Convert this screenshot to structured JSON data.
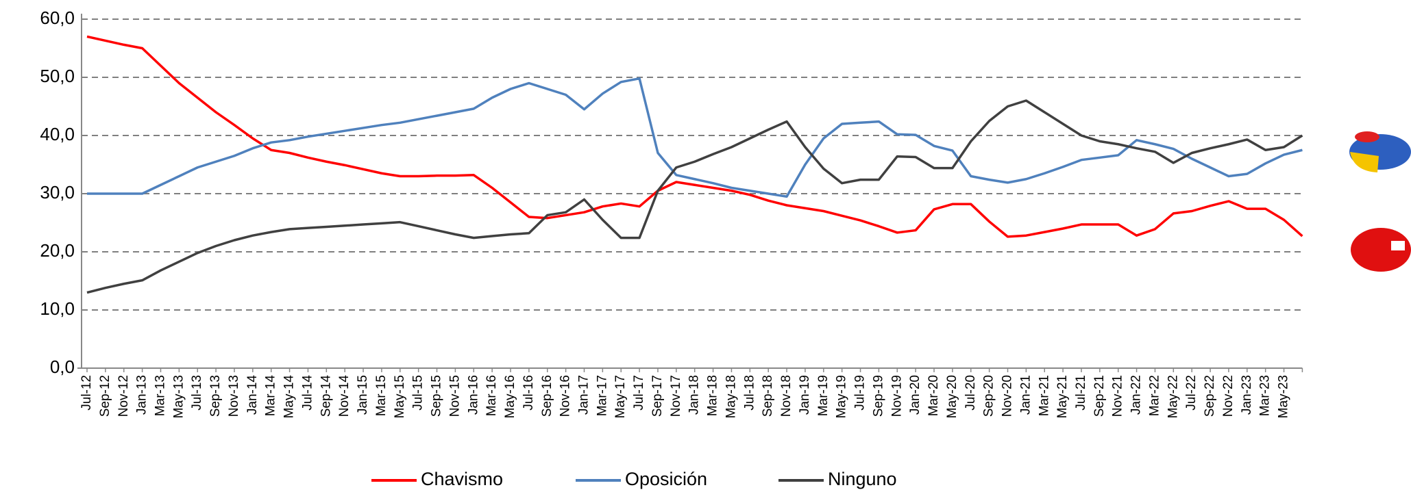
{
  "chart_data": {
    "type": "line",
    "categories": [
      "Jul-12",
      "Sep-12",
      "Nov-12",
      "Jan-13",
      "Mar-13",
      "May-13",
      "Jul-13",
      "Sep-13",
      "Nov-13",
      "Jan-14",
      "Mar-14",
      "May-14",
      "Jul-14",
      "Sep-14",
      "Nov-14",
      "Jan-15",
      "Mar-15",
      "May-15",
      "Jul-15",
      "Sep-15",
      "Nov-15",
      "Jan-16",
      "Mar-16",
      "May-16",
      "Jul-16",
      "Sep-16",
      "Nov-16",
      "Jan-17",
      "Mar-17",
      "May-17",
      "Jul-17",
      "Sep-17",
      "Nov-17",
      "Jan-18",
      "Mar-18",
      "May-18",
      "Jul-18",
      "Sep-18",
      "Nov-18",
      "Jan-19",
      "Mar-19",
      "May-19",
      "Jul-19",
      "Sep-19",
      "Nov-19",
      "Jan-20",
      "Mar-20",
      "May-20",
      "Jul-20",
      "Sep-20",
      "Nov-20",
      "Jan-21",
      "Mar-21",
      "May-21",
      "Jul-21",
      "Sep-21",
      "Nov-21",
      "Jan-22",
      "Mar-22",
      "May-22",
      "Jul-22",
      "Sep-22",
      "Nov-22",
      "Jan-23",
      "Mar-23",
      "May-23",
      null
    ],
    "series": [
      {
        "name": "Chavismo",
        "color": "#ff0000",
        "values": [
          57,
          56.3,
          55.6,
          55,
          52,
          49,
          46.5,
          44,
          41.8,
          39.5,
          37.5,
          37,
          36.2,
          35.5,
          34.9,
          34.2,
          33.5,
          33,
          33,
          33.1,
          33.1,
          33.2,
          31,
          28.5,
          26,
          25.8,
          26.3,
          26.8,
          27.8,
          28.3,
          27.8,
          30.5,
          32,
          31.5,
          31,
          30.5,
          29.8,
          28.8,
          28,
          27.5,
          27,
          26.2,
          25.4,
          24.4,
          23.3,
          23.7,
          27.3,
          28.2,
          28.2,
          25.2,
          22.6,
          22.8,
          23.4,
          24,
          24.7,
          24.7,
          24.7,
          22.8,
          23.9,
          26.6,
          27,
          27.9,
          28.7,
          27.4,
          27.4,
          25.5,
          22.7
        ]
      },
      {
        "name": "Oposición",
        "color": "#4f81bd",
        "values": [
          30,
          30,
          30,
          30,
          31.5,
          33,
          34.5,
          35.5,
          36.5,
          37.8,
          38.8,
          39.2,
          39.8,
          40.3,
          40.8,
          41.3,
          41.8,
          42.2,
          42.8,
          43.4,
          44,
          44.6,
          46.5,
          48,
          49,
          48,
          47,
          44.5,
          47.2,
          49.2,
          49.8,
          37,
          33.2,
          32.5,
          31.8,
          31,
          30.5,
          30,
          29.5,
          35,
          39.5,
          42,
          42.2,
          42.4,
          40.2,
          40.1,
          38.2,
          37.4,
          33,
          32.4,
          31.9,
          32.5,
          33.5,
          34.6,
          35.8,
          36.2,
          36.6,
          39.2,
          38.5,
          37.7,
          36,
          34.5,
          33,
          33.4,
          35.2,
          36.7,
          37.5
        ]
      },
      {
        "name": "Ninguno",
        "color": "#404040",
        "values": [
          13,
          13.8,
          14.5,
          15.1,
          16.8,
          18.3,
          19.8,
          21,
          22,
          22.8,
          23.4,
          23.9,
          24.1,
          24.3,
          24.5,
          24.7,
          24.9,
          25.1,
          24.4,
          23.7,
          23,
          22.4,
          22.7,
          23,
          23.2,
          26.3,
          26.8,
          29,
          25.5,
          22.4,
          22.4,
          30.5,
          34.5,
          35.5,
          36.8,
          38,
          39.5,
          41,
          42.4,
          38,
          34.3,
          31.8,
          32.4,
          32.4,
          36.4,
          36.3,
          34.4,
          34.4,
          39,
          42.5,
          45,
          46,
          44,
          42,
          40,
          39,
          38.5,
          37.8,
          37.2,
          35.3,
          37,
          37.8,
          38.5,
          39.3,
          37.5,
          38,
          40
        ]
      }
    ],
    "ylim": [
      0,
      60
    ],
    "yticks": [
      {
        "value": 0,
        "label": "0,0"
      },
      {
        "value": 10,
        "label": "10,0"
      },
      {
        "value": 20,
        "label": "20,0"
      },
      {
        "value": 30,
        "label": "30,0"
      },
      {
        "value": 40,
        "label": "40,0"
      },
      {
        "value": 50,
        "label": "50,0"
      },
      {
        "value": 60,
        "label": "60,0"
      }
    ],
    "grid": true,
    "legend": "bottom"
  }
}
